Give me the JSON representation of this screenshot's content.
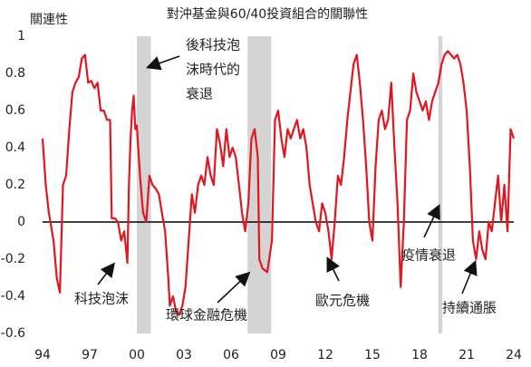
{
  "chart_data": {
    "type": "line",
    "title": "對沖基金與60/40投資組合的關聯性",
    "y_label": "關連性",
    "xlim": [
      1994,
      2024
    ],
    "ylim": [
      -0.6,
      1
    ],
    "xticks": [
      {
        "value": 1994,
        "label": "94"
      },
      {
        "value": 1997,
        "label": "97"
      },
      {
        "value": 2000,
        "label": "00"
      },
      {
        "value": 2003,
        "label": "03"
      },
      {
        "value": 2006,
        "label": "06"
      },
      {
        "value": 2009,
        "label": "09"
      },
      {
        "value": 2012,
        "label": "12"
      },
      {
        "value": 2015,
        "label": "15"
      },
      {
        "value": 2018,
        "label": "18"
      },
      {
        "value": 2021,
        "label": "21"
      },
      {
        "value": 2024,
        "label": "24"
      }
    ],
    "yticks": [
      1,
      0.8,
      0.6,
      0.4,
      0.2,
      0,
      -0.2,
      -0.4,
      -0.6
    ],
    "shaded": [
      {
        "start": 2000.0,
        "end": 2000.9
      },
      {
        "start": 2007.05,
        "end": 2008.55
      },
      {
        "start": 2019.2,
        "end": 2019.45
      }
    ],
    "shade_color": "#d4d4d4",
    "x": [
      1994.0,
      1994.2,
      1994.4,
      1994.5,
      1994.7,
      1994.9,
      1995.1,
      1995.3,
      1995.5,
      1995.7,
      1995.9,
      1996.1,
      1996.3,
      1996.5,
      1996.7,
      1996.9,
      1997.1,
      1997.3,
      1997.5,
      1997.7,
      1997.9,
      1998.1,
      1998.3,
      1998.4,
      1998.6,
      1998.8,
      1999.0,
      1999.2,
      1999.4,
      1999.5,
      1999.6,
      1999.7,
      1999.8,
      1999.9,
      2000.0,
      2000.2,
      2000.4,
      2000.6,
      2000.8,
      2001.0,
      2001.2,
      2001.4,
      2001.6,
      2001.8,
      2002.0,
      2002.1,
      2002.3,
      2002.5,
      2002.7,
      2002.9,
      2003.1,
      2003.3,
      2003.5,
      2003.7,
      2003.9,
      2004.1,
      2004.3,
      2004.5,
      2004.7,
      2004.9,
      2005.1,
      2005.3,
      2005.5,
      2005.7,
      2005.9,
      2006.1,
      2006.3,
      2006.5,
      2006.7,
      2006.9,
      2007.1,
      2007.3,
      2007.5,
      2007.7,
      2007.8,
      2008.0,
      2008.3,
      2008.6,
      2008.8,
      2009.0,
      2009.2,
      2009.4,
      2009.6,
      2009.8,
      2010.0,
      2010.2,
      2010.4,
      2010.6,
      2010.8,
      2011.0,
      2011.2,
      2011.4,
      2011.6,
      2011.8,
      2012.0,
      2012.2,
      2012.4,
      2012.6,
      2012.8,
      2013.0,
      2013.2,
      2013.4,
      2013.6,
      2013.8,
      2014.0,
      2014.2,
      2014.4,
      2014.6,
      2014.8,
      2015.0,
      2015.2,
      2015.4,
      2015.6,
      2015.8,
      2016.0,
      2016.2,
      2016.4,
      2016.6,
      2016.8,
      2017.0,
      2017.2,
      2017.4,
      2017.6,
      2017.8,
      2018.0,
      2018.2,
      2018.4,
      2018.6,
      2018.8,
      2019.0,
      2019.2,
      2019.4,
      2019.6,
      2019.8,
      2020.0,
      2020.2,
      2020.4,
      2020.6,
      2020.8,
      2021.0,
      2021.2,
      2021.4,
      2021.6,
      2021.8,
      2022.0,
      2022.2,
      2022.4,
      2022.6,
      2022.8,
      2023.0,
      2023.2,
      2023.4,
      2023.6,
      2023.8,
      2024.0
    ],
    "series": [
      {
        "color": "#e3161f",
        "values": [
          0.45,
          0.2,
          0.05,
          0.0,
          -0.1,
          -0.3,
          -0.38,
          0.2,
          0.25,
          0.5,
          0.7,
          0.75,
          0.78,
          0.88,
          0.9,
          0.75,
          0.76,
          0.72,
          0.75,
          0.6,
          0.6,
          0.55,
          0.55,
          0.02,
          0.02,
          0.0,
          -0.1,
          -0.05,
          -0.22,
          0.2,
          0.45,
          0.6,
          0.68,
          0.5,
          0.52,
          0.25,
          0.05,
          0.0,
          0.25,
          0.2,
          0.18,
          0.15,
          0.05,
          -0.05,
          -0.3,
          -0.45,
          -0.4,
          -0.48,
          -0.5,
          -0.45,
          -0.35,
          -0.1,
          0.15,
          0.05,
          0.2,
          0.25,
          0.2,
          0.35,
          0.25,
          0.2,
          0.5,
          0.42,
          0.3,
          0.5,
          0.35,
          0.4,
          0.35,
          0.2,
          0.05,
          -0.05,
          0.1,
          0.45,
          0.5,
          0.35,
          -0.2,
          -0.25,
          -0.27,
          -0.1,
          0.55,
          0.6,
          0.45,
          0.35,
          0.5,
          0.45,
          0.5,
          0.55,
          0.45,
          0.5,
          0.4,
          0.2,
          0.1,
          0.0,
          -0.05,
          0.1,
          0.05,
          -0.05,
          -0.2,
          0.0,
          0.25,
          0.2,
          0.35,
          0.55,
          0.7,
          0.85,
          0.9,
          0.75,
          0.55,
          0.3,
          0.0,
          -0.1,
          0.3,
          0.55,
          0.6,
          0.5,
          0.55,
          0.75,
          0.4,
          0.1,
          -0.35,
          0.0,
          0.55,
          0.6,
          0.8,
          0.7,
          0.65,
          0.6,
          0.65,
          0.55,
          0.65,
          0.7,
          0.75,
          0.85,
          0.9,
          0.92,
          0.9,
          0.88,
          0.9,
          0.85,
          0.75,
          0.6,
          0.3,
          -0.1,
          -0.2,
          -0.05,
          -0.15,
          -0.2,
          0.0,
          -0.05,
          0.1,
          0.25,
          0.0,
          0.2,
          -0.05,
          0.5,
          0.45
        ]
      }
    ],
    "annotations": [
      {
        "lines": [
          "後科技泡",
          "沫時代的",
          "衰退"
        ]
      },
      {
        "lines": [
          "科技泡沫"
        ]
      },
      {
        "lines": [
          "環球金融危機"
        ]
      },
      {
        "lines": [
          "歐元危機"
        ]
      },
      {
        "lines": [
          "疫情衰退"
        ]
      },
      {
        "lines": [
          "持續通脹"
        ]
      }
    ]
  }
}
